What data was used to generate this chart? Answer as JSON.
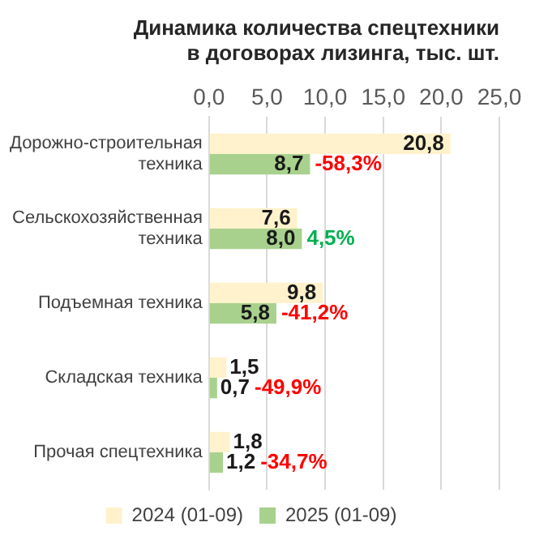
{
  "chart_data": {
    "type": "bar",
    "orientation": "horizontal",
    "title": "Динамика количества спецтехники в договорах лизинга, тыс. шт.",
    "categories": [
      "Дорожно-строительная техника",
      "Сельскохозяйственная техника",
      "Подъемная техника",
      "Складская техника",
      "Прочая спецтехника"
    ],
    "series": [
      {
        "name": "2024 (01-09)",
        "color": "#fff2cc",
        "values": [
          20.8,
          7.6,
          9.8,
          1.5,
          1.8
        ],
        "value_labels": [
          "20,8",
          "7,6",
          "9,8",
          "1,5",
          "1,8"
        ]
      },
      {
        "name": "2025 (01-09)",
        "color": "#a9d18e",
        "values": [
          8.7,
          8.0,
          5.8,
          0.7,
          1.2
        ],
        "value_labels": [
          "8,7",
          "8,0",
          "5,8",
          "0,7",
          "1,2"
        ]
      }
    ],
    "xlim": [
      0,
      25
    ],
    "xticks": [
      {
        "value": 0,
        "label": "0,0"
      },
      {
        "value": 5,
        "label": "5,0"
      },
      {
        "value": 10,
        "label": "10,0"
      },
      {
        "value": 15,
        "label": "15,0"
      },
      {
        "value": 20,
        "label": "20,0"
      },
      {
        "value": 25,
        "label": "25,0"
      }
    ],
    "grid": "x",
    "legend": "bottom",
    "annotations": [
      {
        "text": "-58,3%",
        "x": 8.7,
        "y": "Дорожно-строительная техника"
      },
      {
        "text": "4,5%",
        "x": 8.0,
        "y": "Сельскохозяйственная техника"
      },
      {
        "text": "-41,2%",
        "x": 5.8,
        "y": "Подъемная техника"
      },
      {
        "text": "-49,9%",
        "x": 0.7,
        "y": "Складская техника"
      },
      {
        "text": "-34,7%",
        "x": 1.2,
        "y": "Прочая спецтехника"
      }
    ]
  }
}
